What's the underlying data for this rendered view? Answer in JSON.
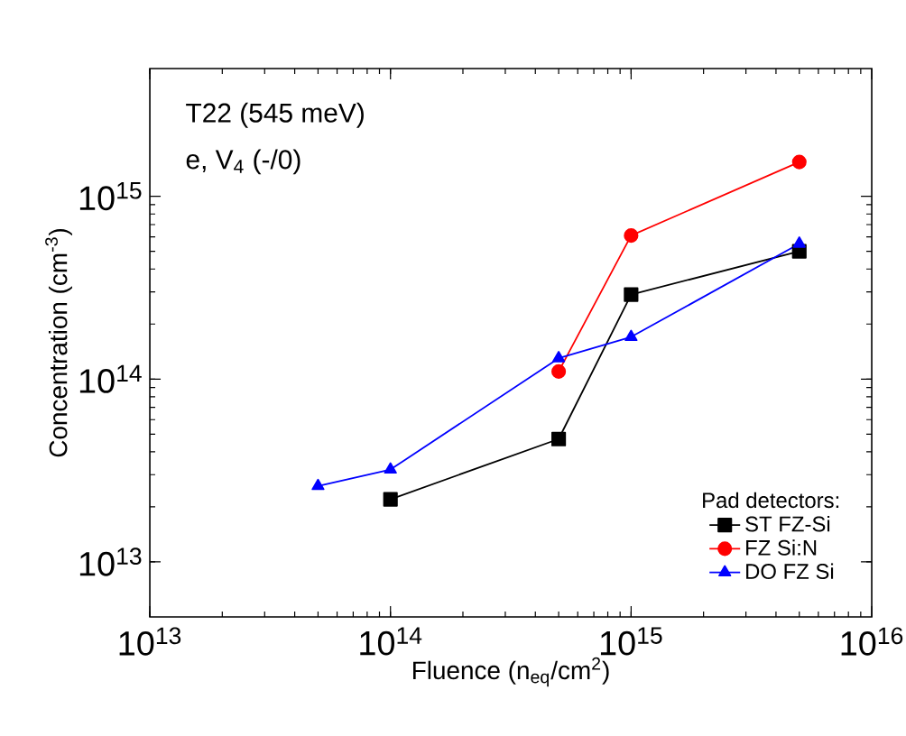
{
  "chart_data": {
    "type": "line",
    "xlabel": "Fluence (n$_{eq}$/cm$^{2}$)",
    "ylabel": "Concentration (cm$^{-3}$)",
    "legend_title": "Pad detectors:",
    "annotations": [
      "T22 (545 meV)",
      "e, V$_{4}$ (-/0)"
    ],
    "log": "xy",
    "xlim": [
      10000000000000.0,
      1e+16
    ],
    "ylim": [
      5000000000000.0,
      5000000000000000.0
    ],
    "xticks": [
      {
        "value": 10000000000000.0,
        "label": "10$^{13}$"
      },
      {
        "value": 100000000000000.0,
        "label": "10$^{14}$"
      },
      {
        "value": 1000000000000000.0,
        "label": "10$^{15}$"
      },
      {
        "value": 1e+16,
        "label": "10$^{16}$"
      }
    ],
    "yticks": [
      {
        "value": 10000000000000.0,
        "label": "10$^{13}$"
      },
      {
        "value": 100000000000000.0,
        "label": "10$^{14}$"
      },
      {
        "value": 1000000000000000.0,
        "label": "10$^{15}$"
      }
    ],
    "legend": "bottom right",
    "grid": false,
    "line_style": "solid",
    "series": [
      {
        "name": "ST FZ-Si",
        "color": "#000000",
        "marker": "square",
        "x": [
          100000000000000.0,
          500000000000000.0,
          1000000000000000.0,
          5000000000000000.0
        ],
        "values": [
          22000000000000.0,
          47000000000000.0,
          290000000000000.0,
          500000000000000.0
        ]
      },
      {
        "name": "FZ Si:N",
        "color": "#ff0000",
        "marker": "circle",
        "x": [
          500000000000000.0,
          1000000000000000.0,
          5000000000000000.0
        ],
        "values": [
          110000000000000.0,
          610000000000000.0,
          1540000000000000.0
        ]
      },
      {
        "name": "DO FZ Si",
        "color": "#0000ff",
        "marker": "triangle",
        "x": [
          50000000000000.0,
          100000000000000.0,
          500000000000000.0,
          1000000000000000.0,
          5000000000000000.0
        ],
        "values": [
          26000000000000.0,
          32000000000000.0,
          130000000000000.0,
          170000000000000.0,
          550000000000000.0
        ]
      }
    ]
  }
}
